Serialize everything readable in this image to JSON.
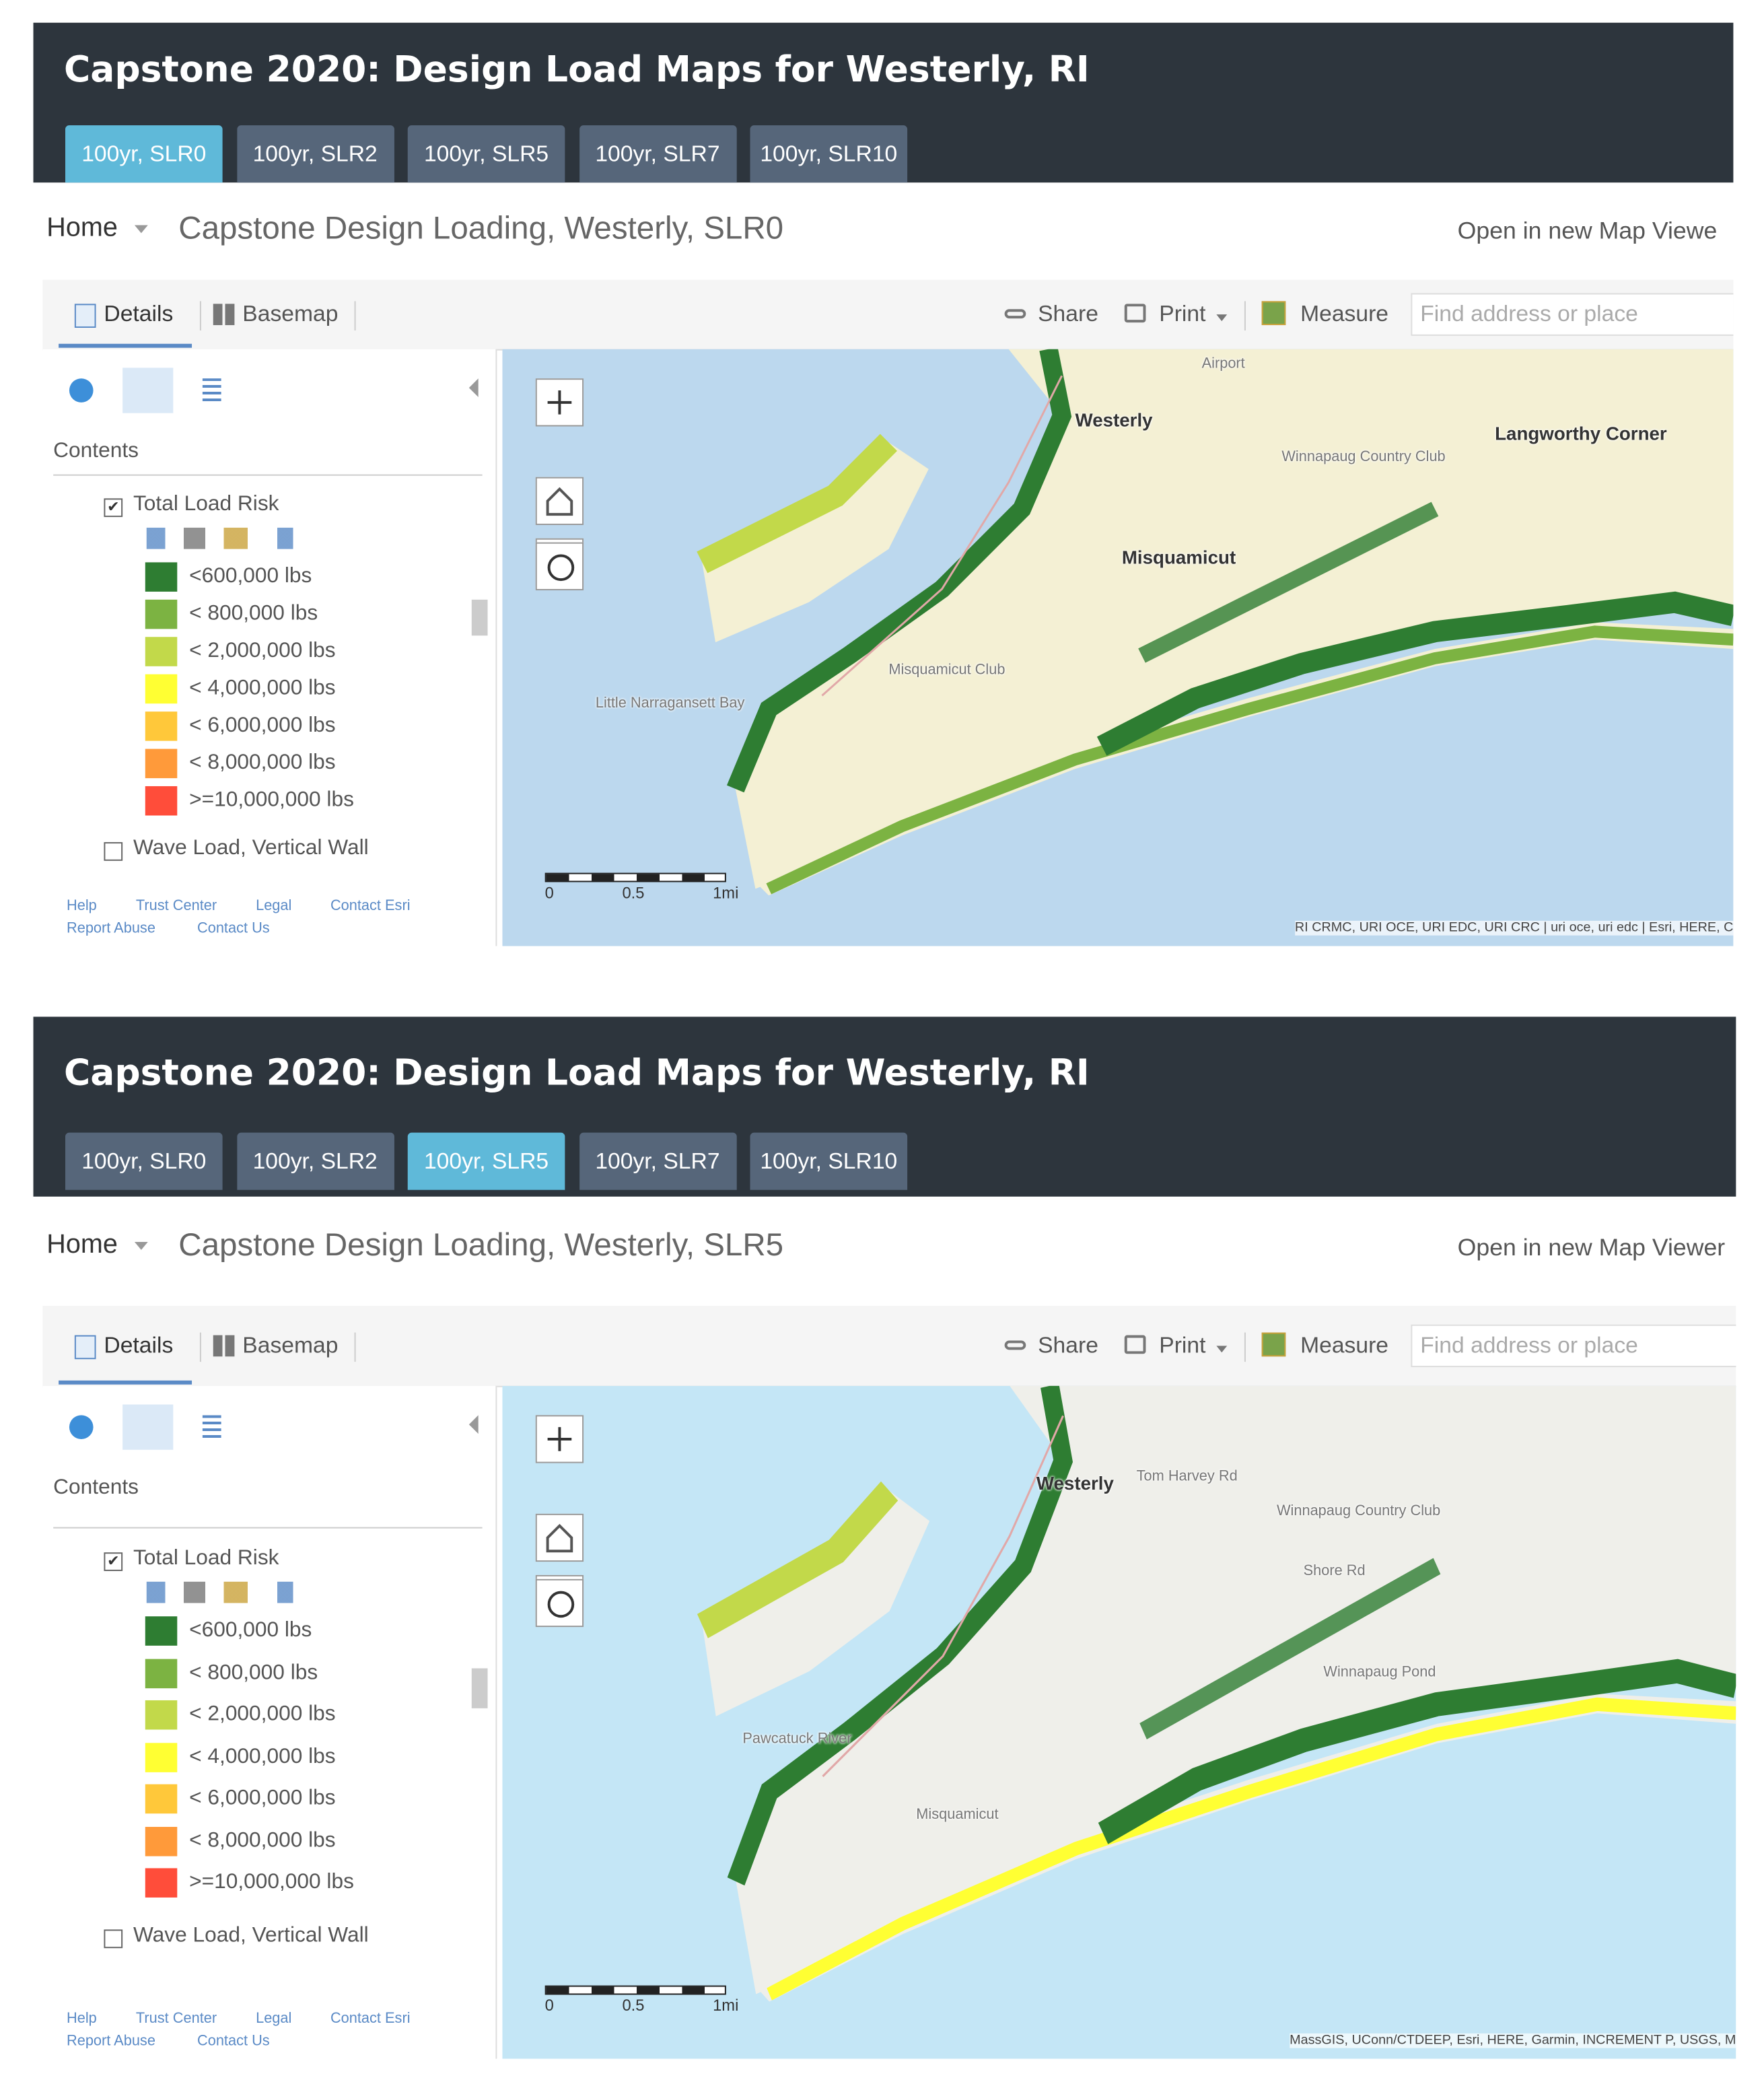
{
  "panels": [
    {
      "title": "Capstone 2020: Design Load Maps for Westerly, RI",
      "tabs": [
        "100yr, SLR0",
        "100yr, SLR2",
        "100yr, SLR5",
        "100yr, SLR7",
        "100yr, SLR10"
      ],
      "active_tab": 0,
      "home": "Home",
      "map_title": "Capstone Design Loading, Westerly, SLR0",
      "open_link": "Open in new Map Viewe",
      "toolbar": {
        "details": "Details",
        "basemap": "Basemap",
        "share": "Share",
        "print": "Print",
        "measure": "Measure",
        "search_placeholder": "Find address or place"
      },
      "contents": "Contents",
      "layers": [
        {
          "name": "Total Load Risk",
          "checked": true
        },
        {
          "name": "Wave Load, Vertical Wall",
          "checked": false
        }
      ],
      "legend": [
        {
          "label": "<600,000 lbs",
          "color": "#2e7d32"
        },
        {
          "label": "< 800,000 lbs",
          "color": "#7cb342"
        },
        {
          "label": "< 2,000,000 lbs",
          "color": "#c2d94a"
        },
        {
          "label": "< 4,000,000 lbs",
          "color": "#ffff33"
        },
        {
          "label": "< 6,000,000 lbs",
          "color": "#ffc83a"
        },
        {
          "label": "< 8,000,000 lbs",
          "color": "#ff9a3a"
        },
        {
          "label": ">=10,000,000 lbs",
          "color": "#ff4d3a"
        }
      ],
      "footer": [
        "Help",
        "Trust Center",
        "Legal",
        "Contact Esri",
        "Report Abuse",
        "Contact Us"
      ],
      "scale_labels": [
        "0",
        "0.5",
        "1mi"
      ],
      "attribution": "RI CRMC, URI OCE, URI EDC, URI CRC | uri oce, uri edc | Esri, HERE, C",
      "map_labels": [
        "Westerly",
        "Langworthy Corner",
        "Misquamicut",
        "Winnapaug Country Club",
        "Airport",
        "Little Narragansett Bay",
        "Misquamicut Club"
      ]
    },
    {
      "title": "Capstone 2020: Design Load Maps for Westerly, RI",
      "tabs": [
        "100yr, SLR0",
        "100yr, SLR2",
        "100yr, SLR5",
        "100yr, SLR7",
        "100yr, SLR10"
      ],
      "active_tab": 2,
      "home": "Home",
      "map_title": "Capstone Design Loading, Westerly, SLR5",
      "open_link": "Open in new Map Viewer",
      "toolbar": {
        "details": "Details",
        "basemap": "Basemap",
        "share": "Share",
        "print": "Print",
        "measure": "Measure",
        "search_placeholder": "Find address or place"
      },
      "contents": "Contents",
      "layers": [
        {
          "name": "Total Load Risk",
          "checked": true
        },
        {
          "name": "Wave Load, Vertical Wall",
          "checked": false
        }
      ],
      "legend": [
        {
          "label": "<600,000 lbs",
          "color": "#2e7d32"
        },
        {
          "label": "< 800,000 lbs",
          "color": "#7cb342"
        },
        {
          "label": "< 2,000,000 lbs",
          "color": "#c2d94a"
        },
        {
          "label": "< 4,000,000 lbs",
          "color": "#ffff33"
        },
        {
          "label": "< 6,000,000 lbs",
          "color": "#ffc83a"
        },
        {
          "label": "< 8,000,000 lbs",
          "color": "#ff9a3a"
        },
        {
          "label": ">=10,000,000 lbs",
          "color": "#ff4d3a"
        }
      ],
      "footer": [
        "Help",
        "Trust Center",
        "Legal",
        "Contact Esri",
        "Report Abuse",
        "Contact Us"
      ],
      "scale_labels": [
        "0",
        "0.5",
        "1mi"
      ],
      "attribution": "MassGIS, UConn/CTDEEP, Esri, HERE, Garmin, INCREMENT P, USGS, M",
      "map_labels": [
        "Westerly",
        "Tom Harvey Rd",
        "Winnapaug Country Club",
        "Shore Rd",
        "Winnapaug Pond",
        "Misquamicut",
        "Pawcatuck River"
      ]
    }
  ]
}
